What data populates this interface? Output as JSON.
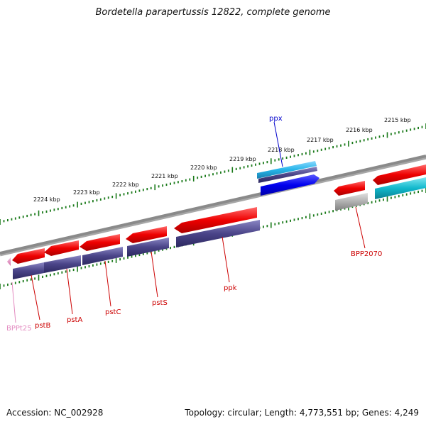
{
  "title": "Bordetella parapertussis 12822, complete genome",
  "footer": {
    "accession": "Accession: NC_002928",
    "summary": "Topology: circular; Length: 4,773,551 bp; Genes: 4,249"
  },
  "ticks": [
    {
      "label": "2224 kbp"
    },
    {
      "label": "2223 kbp"
    },
    {
      "label": "2222 kbp"
    },
    {
      "label": "2221 kbp"
    },
    {
      "label": "2220 kbp"
    },
    {
      "label": "2219 kbp"
    },
    {
      "label": "2218 kbp"
    },
    {
      "label": "2217 kbp"
    },
    {
      "label": "2216 kbp"
    },
    {
      "label": "2215 kbp"
    }
  ],
  "genes": [
    {
      "label": "BPPt25",
      "color": "#e38ac0"
    },
    {
      "label": "pstB",
      "color": "#cc0000"
    },
    {
      "label": "pstA",
      "color": "#cc0000"
    },
    {
      "label": "pstC",
      "color": "#cc0000"
    },
    {
      "label": "pstS",
      "color": "#cc0000"
    },
    {
      "label": "ppk",
      "color": "#cc0000"
    },
    {
      "label": "ppx",
      "color": "#0000cc"
    },
    {
      "label": "BPP2070",
      "color": "#cc0000"
    }
  ],
  "colors": {
    "backbone": "#808080",
    "tick": "#1a7a1a",
    "gene_red": "#ee0000",
    "gene_purple": "#4a4488",
    "gene_blue": "#0000ee",
    "gene_cyan": "#10b8cc",
    "gene_lightblue": "#25b4e8",
    "gene_gray": "#b0b0b0"
  }
}
